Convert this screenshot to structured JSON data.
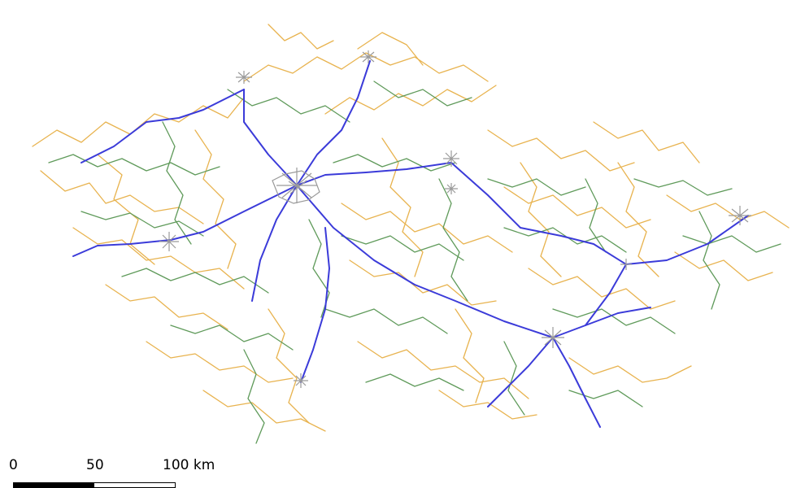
{
  "map": {
    "colors": {
      "motorway": "#3b3bd9",
      "primary": "#5f9a5a",
      "secondary": "#e8b34f",
      "urban": "#9a9a9a"
    }
  },
  "scale_bar": {
    "tick_0": "0",
    "tick_50": "50",
    "tick_100": "100 km"
  }
}
